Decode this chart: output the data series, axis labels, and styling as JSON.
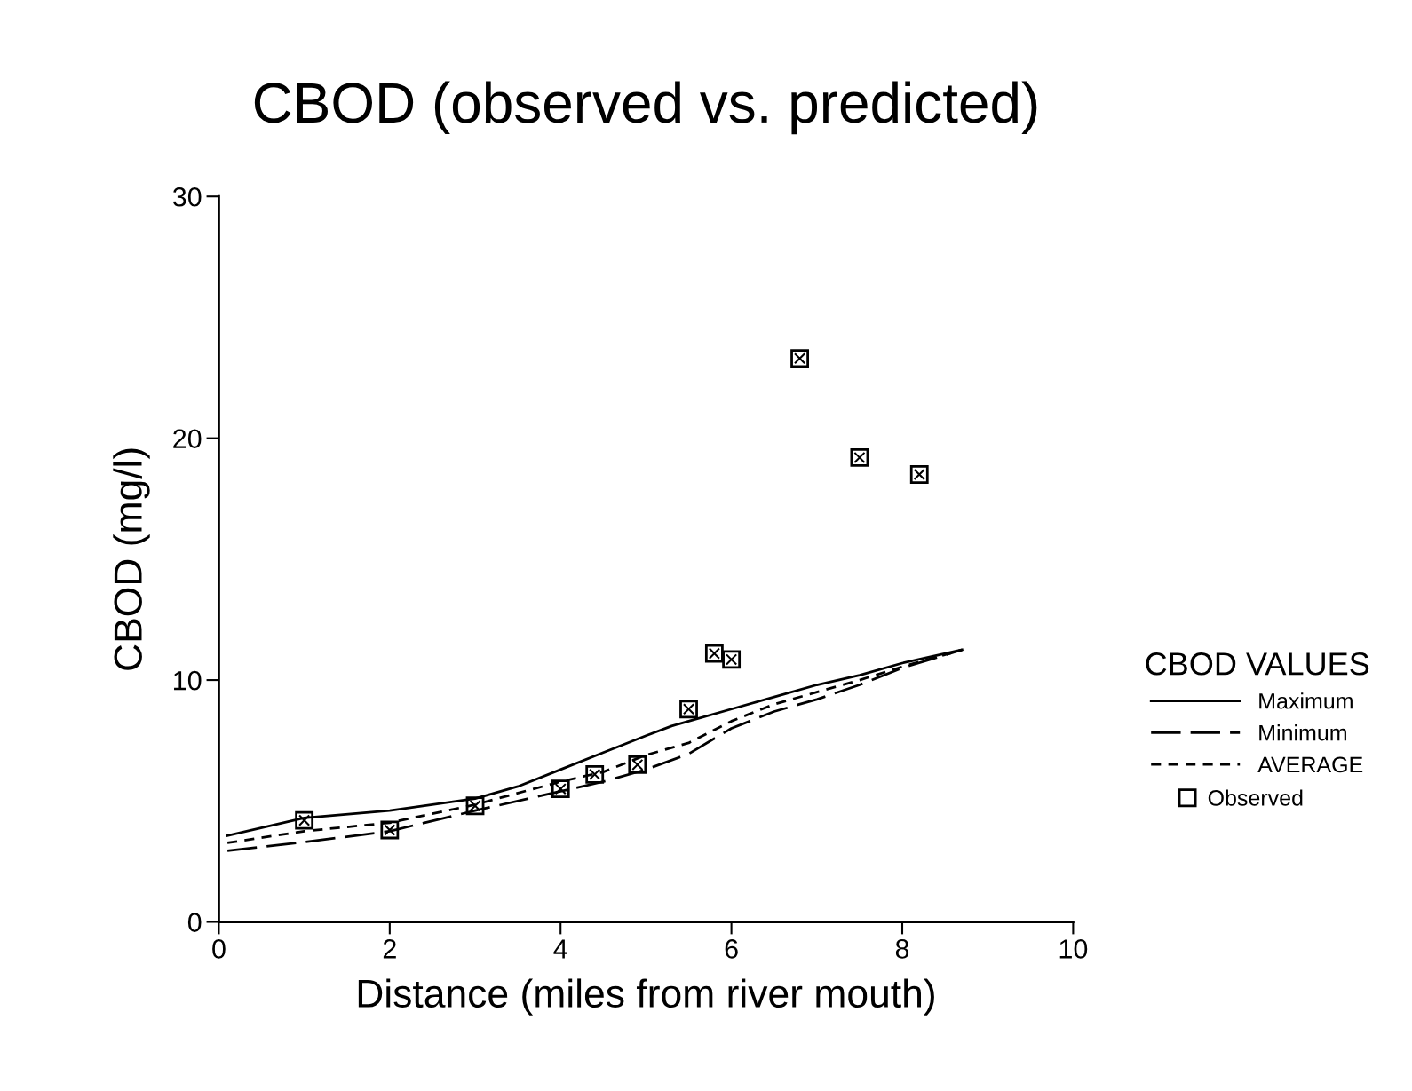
{
  "chart_data": {
    "type": "line",
    "title": "CBOD (observed vs. predicted)",
    "xlabel": "Distance (miles from river mouth)",
    "ylabel": "CBOD (mg/l)",
    "legend_title": "CBOD VALUES",
    "xlim": [
      0,
      10
    ],
    "ylim": [
      0,
      30
    ],
    "xticks": [
      0,
      2,
      4,
      6,
      8,
      10
    ],
    "yticks": [
      0,
      10,
      20,
      30
    ],
    "grid": false,
    "legend": "right",
    "series": [
      {
        "name": "Maximum",
        "color": "#000000",
        "line_style": "solid",
        "marker": "none",
        "x": [
          0.1,
          1,
          2,
          3,
          3.5,
          4,
          4.5,
          5,
          5.3,
          5.5,
          6,
          6.5,
          7,
          7.5,
          8,
          8.7
        ],
        "values": [
          3.57,
          4.3,
          4.6,
          5.1,
          5.6,
          6.3,
          7.0,
          7.7,
          8.1,
          8.3,
          8.8,
          9.3,
          9.8,
          10.2,
          10.7,
          11.25
        ]
      },
      {
        "name": "Minimum",
        "color": "#000000",
        "line_style": "dashed",
        "marker": "none",
        "x": [
          0.1,
          1,
          2,
          3,
          4,
          4.5,
          5,
          5.5,
          6,
          6.5,
          7,
          7.5,
          8,
          8.7
        ],
        "values": [
          2.94,
          3.3,
          3.75,
          4.6,
          5.4,
          5.8,
          6.3,
          6.95,
          8.0,
          8.7,
          9.2,
          9.8,
          10.5,
          11.25
        ]
      },
      {
        "name": "AVERAGE",
        "color": "#000000",
        "line_style": "dotted",
        "marker": "none",
        "x": [
          0.1,
          1,
          2,
          3,
          4,
          4.5,
          5,
          5.5,
          6,
          6.5,
          7,
          7.5,
          8,
          8.7
        ],
        "values": [
          3.27,
          3.75,
          4.1,
          4.85,
          5.8,
          6.2,
          6.9,
          7.4,
          8.3,
          9.0,
          9.5,
          10.0,
          10.55,
          11.25
        ]
      },
      {
        "name": "Observed",
        "type": "scatter",
        "color": "#000000",
        "marker": "square",
        "x": [
          1,
          2,
          3,
          4,
          4.4,
          4.9,
          5.5,
          5.8,
          6,
          6.8,
          7.5,
          8.2
        ],
        "values": [
          4.2,
          3.8,
          4.8,
          5.5,
          6.1,
          6.5,
          8.8,
          11.1,
          10.85,
          23.3,
          19.2,
          18.5
        ]
      }
    ]
  }
}
